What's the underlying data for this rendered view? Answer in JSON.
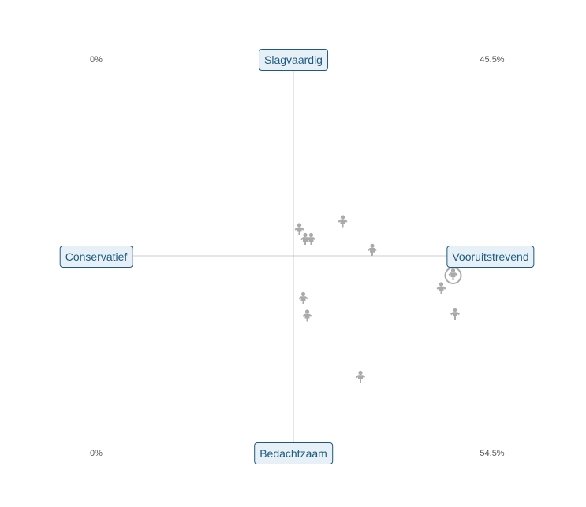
{
  "chart_data": {
    "type": "scatter",
    "axis_labels": {
      "top": "Slagvaardig",
      "bottom": "Bedachtzaam",
      "left": "Conservatief",
      "right": "Vooruitstrevend"
    },
    "corner_percentages": {
      "top_left": "0%",
      "top_right": "45.5%",
      "bottom_left": "0%",
      "bottom_right": "54.5%"
    },
    "xlim": [
      -1,
      1
    ],
    "ylim": [
      -1,
      1
    ],
    "grid": false,
    "legend": "none",
    "point_icon": "person-icon",
    "point_color": "#aaaaaa",
    "axis_color": "#cccccc",
    "label_border_color": "#1e5a7e",
    "label_fill_color": "#e6f0f6",
    "points": [
      {
        "x": 0.03,
        "y": 0.13,
        "highlighted": false
      },
      {
        "x": 0.06,
        "y": 0.08,
        "highlighted": false
      },
      {
        "x": 0.09,
        "y": 0.08,
        "highlighted": false
      },
      {
        "x": 0.25,
        "y": 0.17,
        "highlighted": false
      },
      {
        "x": 0.4,
        "y": 0.025,
        "highlighted": false
      },
      {
        "x": 0.81,
        "y": -0.1,
        "highlighted": true
      },
      {
        "x": 0.75,
        "y": -0.17,
        "highlighted": false
      },
      {
        "x": 0.82,
        "y": -0.3,
        "highlighted": false
      },
      {
        "x": 0.05,
        "y": -0.22,
        "highlighted": false
      },
      {
        "x": 0.07,
        "y": -0.31,
        "highlighted": false
      },
      {
        "x": 0.34,
        "y": -0.62,
        "highlighted": false
      }
    ]
  }
}
